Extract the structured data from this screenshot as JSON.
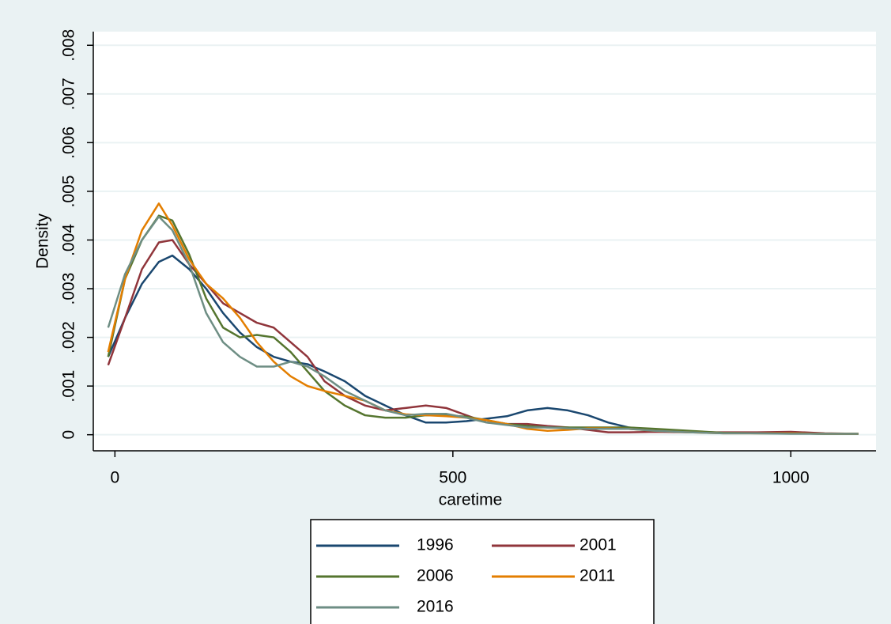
{
  "chart_data": {
    "type": "line",
    "x_label": "caretime",
    "y_label": "Density",
    "x": [
      -10,
      15,
      40,
      65,
      85,
      110,
      135,
      160,
      185,
      210,
      235,
      260,
      285,
      310,
      340,
      370,
      400,
      430,
      460,
      490,
      520,
      550,
      580,
      610,
      640,
      670,
      700,
      730,
      760,
      800,
      850,
      900,
      950,
      1000,
      1050,
      1100
    ],
    "series": [
      {
        "name": "1996",
        "color": "#1a476f",
        "values": [
          0.0016,
          0.0024,
          0.0031,
          0.00355,
          0.00368,
          0.0034,
          0.003,
          0.0025,
          0.0021,
          0.0018,
          0.0016,
          0.0015,
          0.00145,
          0.0013,
          0.0011,
          0.0008,
          0.0006,
          0.0004,
          0.00025,
          0.00025,
          0.00028,
          0.00033,
          0.00038,
          0.0005,
          0.00055,
          0.0005,
          0.0004,
          0.00025,
          0.00015,
          0.0001,
          7e-05,
          4e-05,
          4e-05,
          3e-05,
          2e-05,
          2e-05
        ]
      },
      {
        "name": "2001",
        "color": "#90353b",
        "values": [
          0.00143,
          0.0024,
          0.0034,
          0.00395,
          0.004,
          0.0035,
          0.0031,
          0.0027,
          0.0025,
          0.0023,
          0.0022,
          0.0019,
          0.0016,
          0.0011,
          0.0008,
          0.0006,
          0.0005,
          0.00055,
          0.0006,
          0.00055,
          0.0004,
          0.00025,
          0.00022,
          0.00022,
          0.00018,
          0.00015,
          0.0001,
          5e-05,
          5e-05,
          6e-05,
          5e-05,
          5e-05,
          5e-05,
          6e-05,
          3e-05,
          2e-05
        ]
      },
      {
        "name": "2006",
        "color": "#55752f",
        "values": [
          0.0016,
          0.0032,
          0.004,
          0.0045,
          0.0044,
          0.0037,
          0.0028,
          0.0022,
          0.002,
          0.00205,
          0.002,
          0.0017,
          0.0013,
          0.0009,
          0.0006,
          0.0004,
          0.00035,
          0.00035,
          0.0004,
          0.0004,
          0.00037,
          0.0003,
          0.00022,
          0.00018,
          0.00015,
          0.00015,
          0.00015,
          0.00015,
          0.00015,
          0.00012,
          8e-05,
          4e-05,
          3e-05,
          3e-05,
          2e-05,
          2e-05
        ]
      },
      {
        "name": "2011",
        "color": "#e37e00",
        "values": [
          0.0017,
          0.0032,
          0.0042,
          0.00475,
          0.0043,
          0.0036,
          0.0031,
          0.0028,
          0.0024,
          0.0019,
          0.0015,
          0.0012,
          0.001,
          0.0009,
          0.0008,
          0.0007,
          0.0005,
          0.00042,
          0.0004,
          0.00038,
          0.00035,
          0.0003,
          0.00022,
          0.00012,
          8e-05,
          0.0001,
          0.00013,
          0.00013,
          0.00012,
          8e-05,
          5e-05,
          3e-05,
          3e-05,
          3e-05,
          2e-05,
          2e-05
        ]
      },
      {
        "name": "2016",
        "color": "#6e8e84",
        "values": [
          0.0022,
          0.0033,
          0.004,
          0.00448,
          0.0042,
          0.0035,
          0.0025,
          0.0019,
          0.0016,
          0.0014,
          0.0014,
          0.0015,
          0.0014,
          0.0012,
          0.0009,
          0.0007,
          0.0005,
          0.0004,
          0.00043,
          0.00043,
          0.00035,
          0.00025,
          0.0002,
          0.00015,
          0.00015,
          0.00013,
          0.00012,
          0.00012,
          0.00012,
          8e-05,
          5e-05,
          3e-05,
          3e-05,
          2e-05,
          2e-05,
          2e-05
        ]
      }
    ],
    "xlim": [
      -32,
      1126
    ],
    "xticks": [
      0,
      500,
      1000
    ],
    "ylim": [
      -0.00033,
      0.00828
    ],
    "yticks": [
      0,
      {
        "value": 0.001,
        "label": ".001"
      },
      {
        "value": 0.002,
        "label": ".002"
      },
      {
        "value": 0.003,
        "label": ".003"
      },
      {
        "value": 0.004,
        "label": ".004"
      },
      {
        "value": 0.005,
        "label": ".005"
      },
      {
        "value": 0.006,
        "label": ".006"
      },
      {
        "value": 0.007,
        "label": ".007"
      },
      {
        "value": 0.008,
        "label": ".008"
      }
    ],
    "grid": true,
    "legend": "bottom"
  }
}
